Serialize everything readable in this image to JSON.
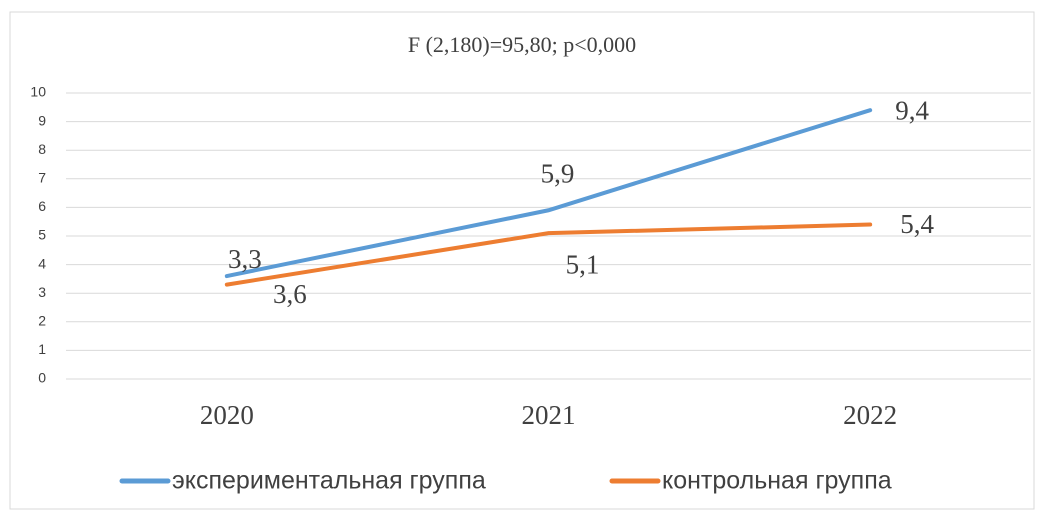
{
  "chart_data": {
    "type": "line",
    "title": "F (2,180)=95,80; p<0,000",
    "categories": [
      "2020",
      "2021",
      "2022"
    ],
    "series": [
      {
        "name": "экспериментальная группа",
        "color": "#5b9bd5",
        "values": [
          3.6,
          5.9,
          9.4
        ],
        "value_labels": [
          "3,6",
          "5,9",
          "9,4"
        ]
      },
      {
        "name": "контрольная группа",
        "color": "#ed7d31",
        "values": [
          3.3,
          5.1,
          5.4
        ],
        "value_labels": [
          "3,3",
          "5,1",
          "5,4"
        ]
      }
    ],
    "ylim": [
      0,
      10
    ],
    "yticks": [
      0,
      1,
      2,
      3,
      4,
      5,
      6,
      7,
      8,
      9,
      10
    ],
    "grid": true,
    "legend": "bottom"
  }
}
